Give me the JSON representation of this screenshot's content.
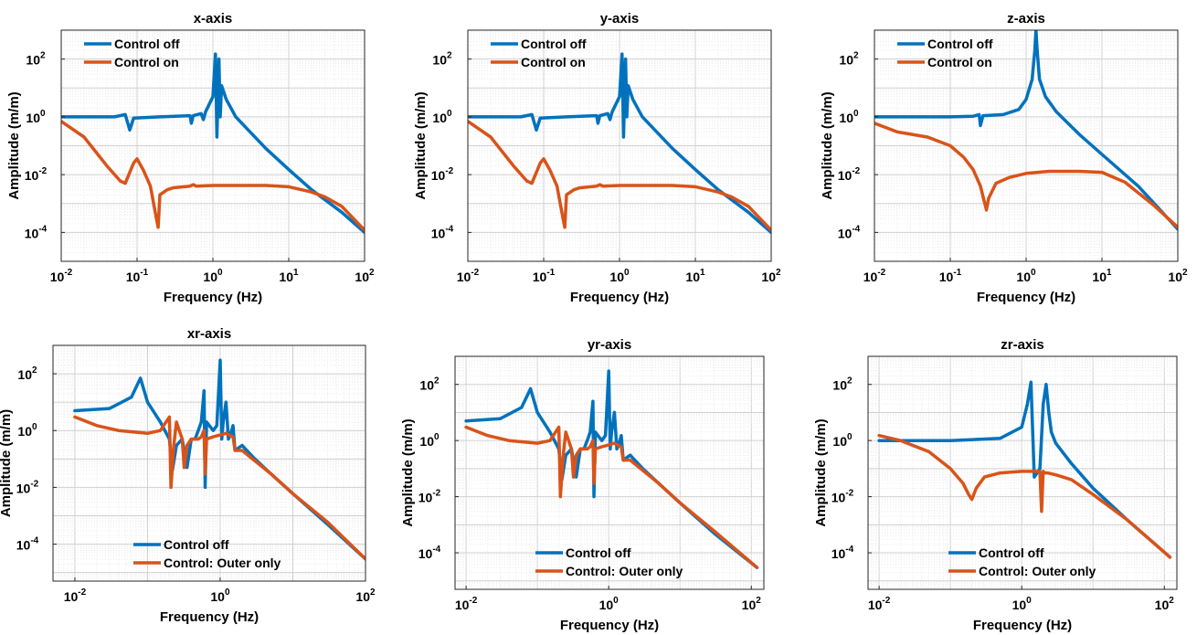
{
  "colors": {
    "off": "#0072BD",
    "on": "#D95319"
  },
  "chart_data": [
    {
      "type": "line",
      "title": "x-axis",
      "xlabel": "Frequency (Hz)",
      "ylabel": "Amplitude (m/m)",
      "xscale": "log",
      "yscale": "log",
      "xlim": [
        0.01,
        100
      ],
      "ylim": [
        1e-05,
        1000
      ],
      "xticks": [
        {
          "v": 0.01,
          "b": "10",
          "e": "-2"
        },
        {
          "v": 0.1,
          "b": "10",
          "e": "-1"
        },
        {
          "v": 1,
          "b": "10",
          "e": "0"
        },
        {
          "v": 10,
          "b": "10",
          "e": "1"
        },
        {
          "v": 100,
          "b": "10",
          "e": "2"
        }
      ],
      "yticks": [
        {
          "v": 0.0001,
          "b": "10",
          "e": "-4"
        },
        {
          "v": 0.01,
          "b": "10",
          "e": "-2"
        },
        {
          "v": 1,
          "b": "10",
          "e": "0"
        },
        {
          "v": 100,
          "b": "10",
          "e": "2"
        }
      ],
      "grid": true,
      "legend_position": "top-left",
      "series": [
        {
          "name": "Control off",
          "color": "off",
          "x": [
            0.01,
            0.05,
            0.07,
            0.08,
            0.09,
            0.2,
            0.5,
            0.52,
            0.55,
            0.7,
            0.75,
            0.8,
            1.0,
            1.08,
            1.13,
            1.2,
            1.25,
            1.3,
            1.5,
            2,
            5,
            10,
            20,
            50,
            100
          ],
          "y": [
            1,
            1,
            1.2,
            0.35,
            0.9,
            1,
            1.1,
            0.6,
            1.1,
            1.3,
            0.8,
            1.5,
            5,
            150,
            0.2,
            100,
            1,
            12,
            4,
            1,
            0.08,
            0.015,
            0.003,
            0.0005,
            0.0001
          ]
        },
        {
          "name": "Control on",
          "color": "on",
          "x": [
            0.01,
            0.02,
            0.04,
            0.06,
            0.07,
            0.09,
            0.1,
            0.12,
            0.15,
            0.18,
            0.19,
            0.2,
            0.25,
            0.3,
            0.5,
            0.55,
            0.6,
            1,
            2,
            5,
            10,
            20,
            30,
            50,
            100
          ],
          "y": [
            0.7,
            0.2,
            0.02,
            0.006,
            0.005,
            0.025,
            0.035,
            0.015,
            0.004,
            0.0003,
            0.00015,
            0.002,
            0.003,
            0.0035,
            0.004,
            0.0045,
            0.004,
            0.0042,
            0.0042,
            0.0042,
            0.0038,
            0.0025,
            0.0017,
            0.0008,
            0.00012
          ]
        }
      ]
    },
    {
      "type": "line",
      "title": "y-axis",
      "xlabel": "Frequency (Hz)",
      "ylabel": "Amplitude (m/m)",
      "xscale": "log",
      "yscale": "log",
      "xlim": [
        0.01,
        100
      ],
      "ylim": [
        1e-05,
        1000
      ],
      "xticks": [
        {
          "v": 0.01,
          "b": "10",
          "e": "-2"
        },
        {
          "v": 0.1,
          "b": "10",
          "e": "-1"
        },
        {
          "v": 1,
          "b": "10",
          "e": "0"
        },
        {
          "v": 10,
          "b": "10",
          "e": "1"
        },
        {
          "v": 100,
          "b": "10",
          "e": "2"
        }
      ],
      "yticks": [
        {
          "v": 0.0001,
          "b": "10",
          "e": "-4"
        },
        {
          "v": 0.01,
          "b": "10",
          "e": "-2"
        },
        {
          "v": 1,
          "b": "10",
          "e": "0"
        },
        {
          "v": 100,
          "b": "10",
          "e": "2"
        }
      ],
      "grid": true,
      "legend_position": "top-left",
      "series": [
        {
          "name": "Control off",
          "color": "off",
          "x": [
            0.01,
            0.05,
            0.07,
            0.08,
            0.09,
            0.2,
            0.5,
            0.52,
            0.55,
            0.7,
            0.75,
            0.8,
            1.0,
            1.08,
            1.13,
            1.2,
            1.25,
            1.3,
            1.5,
            2,
            5,
            10,
            20,
            50,
            100
          ],
          "y": [
            1,
            1,
            1.2,
            0.35,
            0.9,
            1,
            1.1,
            0.6,
            1.1,
            1.3,
            0.8,
            1.5,
            5,
            150,
            0.2,
            100,
            1,
            12,
            4,
            1,
            0.08,
            0.015,
            0.003,
            0.0005,
            0.0001
          ]
        },
        {
          "name": "Control on",
          "color": "on",
          "x": [
            0.01,
            0.02,
            0.04,
            0.06,
            0.07,
            0.09,
            0.1,
            0.12,
            0.15,
            0.18,
            0.19,
            0.2,
            0.25,
            0.3,
            0.5,
            0.55,
            0.6,
            1,
            2,
            5,
            10,
            20,
            30,
            50,
            100
          ],
          "y": [
            0.7,
            0.2,
            0.02,
            0.006,
            0.005,
            0.025,
            0.035,
            0.015,
            0.004,
            0.0003,
            0.00015,
            0.002,
            0.003,
            0.0035,
            0.004,
            0.0045,
            0.004,
            0.0042,
            0.0042,
            0.0042,
            0.0038,
            0.0025,
            0.0017,
            0.0008,
            0.00012
          ]
        }
      ]
    },
    {
      "type": "line",
      "title": "z-axis",
      "xlabel": "Frequency (Hz)",
      "ylabel": "Amplitude (m/m)",
      "xscale": "log",
      "yscale": "log",
      "xlim": [
        0.01,
        100
      ],
      "ylim": [
        1e-05,
        1000
      ],
      "xticks": [
        {
          "v": 0.01,
          "b": "10",
          "e": "-2"
        },
        {
          "v": 0.1,
          "b": "10",
          "e": "-1"
        },
        {
          "v": 1,
          "b": "10",
          "e": "0"
        },
        {
          "v": 10,
          "b": "10",
          "e": "1"
        },
        {
          "v": 100,
          "b": "10",
          "e": "2"
        }
      ],
      "yticks": [
        {
          "v": 0.0001,
          "b": "10",
          "e": "-4"
        },
        {
          "v": 0.01,
          "b": "10",
          "e": "-2"
        },
        {
          "v": 1,
          "b": "10",
          "e": "0"
        },
        {
          "v": 100,
          "b": "10",
          "e": "2"
        }
      ],
      "grid": true,
      "legend_position": "top-left",
      "series": [
        {
          "name": "Control off",
          "color": "off",
          "x": [
            0.01,
            0.1,
            0.2,
            0.24,
            0.25,
            0.27,
            0.5,
            0.8,
            1.0,
            1.2,
            1.3,
            1.35,
            1.4,
            1.5,
            1.8,
            2.5,
            5,
            10,
            30,
            100
          ],
          "y": [
            1,
            1,
            1.05,
            1.2,
            0.5,
            1.1,
            1.2,
            1.8,
            4,
            20,
            200,
            1000,
            200,
            20,
            5,
            1.5,
            0.25,
            0.05,
            0.004,
            0.00013
          ]
        },
        {
          "name": "Control on",
          "color": "on",
          "x": [
            0.01,
            0.02,
            0.05,
            0.1,
            0.15,
            0.2,
            0.25,
            0.28,
            0.3,
            0.32,
            0.4,
            0.6,
            1,
            2,
            5,
            10,
            20,
            50,
            100
          ],
          "y": [
            0.6,
            0.3,
            0.2,
            0.1,
            0.04,
            0.015,
            0.004,
            0.0012,
            0.0006,
            0.0015,
            0.005,
            0.008,
            0.011,
            0.013,
            0.013,
            0.012,
            0.0055,
            0.0008,
            0.00015
          ]
        }
      ]
    },
    {
      "type": "line",
      "title": "xr-axis",
      "xlabel": "Frequency (Hz)",
      "ylabel": "Amplitude (m/m)",
      "xscale": "log",
      "yscale": "log",
      "xlim": [
        0.005,
        100
      ],
      "ylim": [
        5e-06,
        1000
      ],
      "xticks": [
        {
          "v": 0.01,
          "b": "10",
          "e": "-2"
        },
        {
          "v": 1,
          "b": "10",
          "e": "0"
        },
        {
          "v": 100,
          "b": "10",
          "e": "2"
        }
      ],
      "yticks": [
        {
          "v": 0.0001,
          "b": "10",
          "e": "-4"
        },
        {
          "v": 0.01,
          "b": "10",
          "e": "-2"
        },
        {
          "v": 1,
          "b": "10",
          "e": "0"
        },
        {
          "v": 100,
          "b": "10",
          "e": "2"
        }
      ],
      "grid": true,
      "legend_position": "bottom-center",
      "series": [
        {
          "name": "Control off",
          "color": "off",
          "x": [
            0.01,
            0.03,
            0.06,
            0.08,
            0.1,
            0.15,
            0.2,
            0.22,
            0.25,
            0.3,
            0.35,
            0.4,
            0.45,
            0.5,
            0.55,
            0.6,
            0.62,
            0.65,
            0.8,
            0.9,
            1.0,
            1.05,
            1.1,
            1.2,
            1.3,
            1.4,
            1.5,
            1.6,
            2,
            3,
            5,
            10,
            30,
            100
          ],
          "y": [
            5,
            6,
            15,
            70,
            10,
            2,
            0.5,
            0.04,
            0.3,
            0.5,
            0.05,
            0.5,
            0.5,
            1,
            2,
            25,
            0.01,
            2,
            1,
            1.5,
            300,
            0.5,
            2,
            10,
            0.5,
            0.8,
            1.5,
            0.2,
            0.3,
            0.1,
            0.03,
            0.006,
            0.0005,
            3e-05
          ]
        },
        {
          "name": "Control: Outer only",
          "color": "on",
          "x": [
            0.01,
            0.02,
            0.04,
            0.1,
            0.15,
            0.2,
            0.21,
            0.23,
            0.25,
            0.3,
            0.32,
            0.35,
            0.4,
            0.5,
            0.55,
            0.6,
            0.62,
            0.65,
            0.8,
            1,
            1.2,
            1.5,
            1.6,
            2,
            5,
            10,
            30,
            100
          ],
          "y": [
            3,
            1.5,
            1,
            0.8,
            1,
            3,
            0.01,
            0.3,
            2,
            0.5,
            0.05,
            0.3,
            0.5,
            0.5,
            0.6,
            1,
            0.03,
            0.5,
            0.6,
            0.7,
            0.8,
            0.6,
            0.2,
            0.2,
            0.03,
            0.006,
            0.0006,
            3e-05
          ]
        }
      ]
    },
    {
      "type": "line",
      "title": "yr-axis",
      "xlabel": "Frequency (Hz)",
      "ylabel": "Amplitude (m/m)",
      "xscale": "log",
      "yscale": "log",
      "xlim": [
        0.007,
        150
      ],
      "ylim": [
        5e-06,
        1000
      ],
      "xticks": [
        {
          "v": 0.01,
          "b": "10",
          "e": "-2"
        },
        {
          "v": 1,
          "b": "10",
          "e": "0"
        },
        {
          "v": 100,
          "b": "10",
          "e": "2"
        }
      ],
      "yticks": [
        {
          "v": 0.0001,
          "b": "10",
          "e": "-4"
        },
        {
          "v": 0.01,
          "b": "10",
          "e": "-2"
        },
        {
          "v": 1,
          "b": "10",
          "e": "0"
        },
        {
          "v": 100,
          "b": "10",
          "e": "2"
        }
      ],
      "grid": true,
      "legend_position": "bottom-center",
      "series": [
        {
          "name": "Control off",
          "color": "off",
          "x": [
            0.01,
            0.03,
            0.06,
            0.08,
            0.1,
            0.15,
            0.2,
            0.22,
            0.25,
            0.3,
            0.35,
            0.4,
            0.45,
            0.5,
            0.55,
            0.6,
            0.62,
            0.65,
            0.8,
            0.9,
            1.0,
            1.05,
            1.1,
            1.2,
            1.3,
            1.4,
            1.5,
            1.6,
            2,
            3,
            5,
            10,
            30,
            120
          ],
          "y": [
            5,
            6,
            15,
            70,
            10,
            2,
            0.5,
            0.04,
            0.3,
            0.5,
            0.05,
            0.5,
            0.5,
            1,
            2,
            25,
            0.01,
            2,
            1,
            1.5,
            300,
            0.5,
            2,
            10,
            0.5,
            0.8,
            1.5,
            0.2,
            0.3,
            0.1,
            0.03,
            0.006,
            0.0005,
            3e-05
          ]
        },
        {
          "name": "Control: Outer only",
          "color": "on",
          "x": [
            0.01,
            0.02,
            0.04,
            0.1,
            0.15,
            0.2,
            0.21,
            0.23,
            0.25,
            0.3,
            0.32,
            0.35,
            0.4,
            0.5,
            0.55,
            0.6,
            0.62,
            0.65,
            0.8,
            1,
            1.2,
            1.5,
            1.6,
            2,
            5,
            10,
            30,
            120
          ],
          "y": [
            3,
            1.5,
            1,
            0.8,
            1,
            3,
            0.01,
            0.3,
            2,
            0.5,
            0.05,
            0.3,
            0.5,
            0.5,
            0.6,
            1,
            0.03,
            0.5,
            0.6,
            0.7,
            0.8,
            0.6,
            0.2,
            0.2,
            0.03,
            0.006,
            0.0006,
            3e-05
          ]
        }
      ]
    },
    {
      "type": "line",
      "title": "zr-axis",
      "xlabel": "Frequency (Hz)",
      "ylabel": "Amplitude (m/m)",
      "xscale": "log",
      "yscale": "log",
      "xlim": [
        0.007,
        150
      ],
      "ylim": [
        5e-06,
        1000
      ],
      "xticks": [
        {
          "v": 0.01,
          "b": "10",
          "e": "-2"
        },
        {
          "v": 1,
          "b": "10",
          "e": "0"
        },
        {
          "v": 100,
          "b": "10",
          "e": "2"
        }
      ],
      "yticks": [
        {
          "v": 0.0001,
          "b": "10",
          "e": "-4"
        },
        {
          "v": 0.01,
          "b": "10",
          "e": "-2"
        },
        {
          "v": 1,
          "b": "10",
          "e": "0"
        },
        {
          "v": 100,
          "b": "10",
          "e": "2"
        }
      ],
      "grid": true,
      "legend_position": "bottom-center",
      "series": [
        {
          "name": "Control off",
          "color": "off",
          "x": [
            0.01,
            0.1,
            0.5,
            1.0,
            1.2,
            1.35,
            1.5,
            1.8,
            2.0,
            2.2,
            2.4,
            2.6,
            3,
            5,
            10,
            30,
            120
          ],
          "y": [
            1,
            1,
            1.2,
            3,
            20,
            120,
            0.05,
            0.1,
            20,
            100,
            10,
            2,
            0.8,
            0.15,
            0.02,
            0.0015,
            7e-05
          ]
        },
        {
          "name": "Control: Outer only",
          "color": "on",
          "x": [
            0.01,
            0.02,
            0.05,
            0.1,
            0.15,
            0.18,
            0.2,
            0.23,
            0.3,
            0.5,
            1,
            1.5,
            1.8,
            1.9,
            2.0,
            2.1,
            2.3,
            3,
            5,
            10,
            30,
            120
          ],
          "y": [
            1.5,
            1,
            0.4,
            0.1,
            0.03,
            0.012,
            0.008,
            0.02,
            0.05,
            0.07,
            0.08,
            0.08,
            0.08,
            0.003,
            0.08,
            0.07,
            0.07,
            0.06,
            0.04,
            0.012,
            0.0015,
            7e-05
          ]
        }
      ]
    }
  ]
}
